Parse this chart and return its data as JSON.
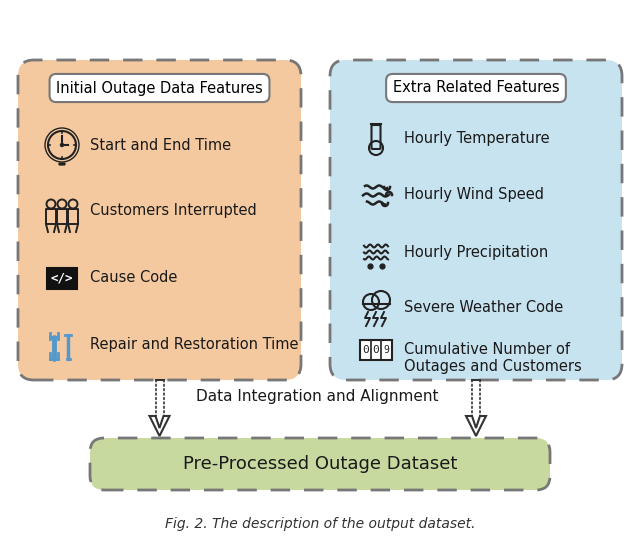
{
  "title": "Fig. 2. The description of the output dataset.",
  "left_box": {
    "title": "Initial Outage Data Features",
    "bg_color": "#F5C9A0",
    "border_color": "#777777",
    "items": [
      {
        "text": "Start and End Time"
      },
      {
        "text": "Customers Interrupted"
      },
      {
        "text": "Cause Code"
      },
      {
        "text": "Repair and Restoration Time"
      }
    ]
  },
  "right_box": {
    "title": "Extra Related Features",
    "bg_color": "#C8E3F0",
    "border_color": "#777777",
    "items": [
      {
        "text": "Hourly Temperature"
      },
      {
        "text": "Hourly Wind Speed"
      },
      {
        "text": "Hourly Precipitation"
      },
      {
        "text": "Severe Weather Code"
      },
      {
        "text": "Cumulative Number of\nOutages and Customers"
      }
    ]
  },
  "bottom_box": {
    "text": "Pre-Processed Outage Dataset",
    "bg_color": "#C8D9A0",
    "border_color": "#777777"
  },
  "arrow_label": "Data Integration and Alignment",
  "bg_color": "#FFFFFF",
  "caption": "Fig. 2. The description of the output dataset."
}
